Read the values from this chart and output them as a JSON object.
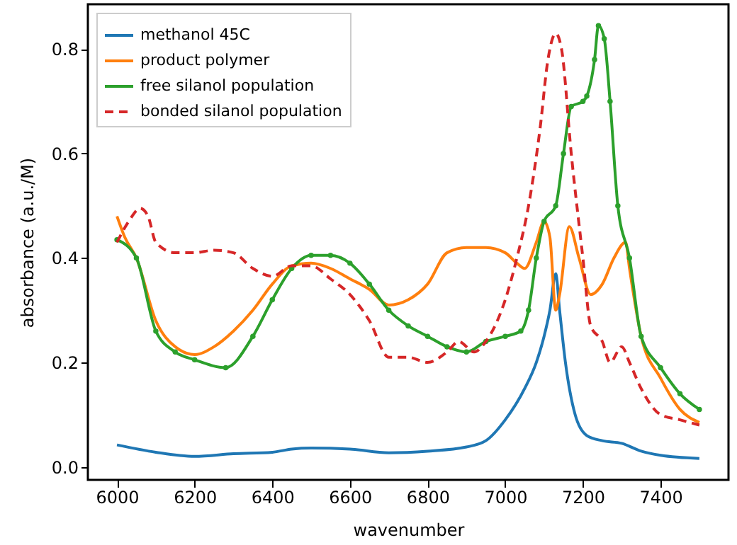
{
  "chart_data": {
    "type": "line",
    "xlabel": "wavenumber",
    "ylabel": "absorbance (a.u./M)",
    "legend": "top left",
    "grid": false,
    "line_style": "solid",
    "xlim": [
      5925,
      7575
    ],
    "xticks": [
      6000,
      6200,
      6400,
      6600,
      6800,
      7000,
      7200,
      7400
    ],
    "ylim": [
      -0.025,
      0.886
    ],
    "yticks": [
      {
        "value": 0,
        "label": "0.0"
      },
      {
        "value": 0.2,
        "label": "0.2"
      },
      {
        "value": 0.4,
        "label": "0.4"
      },
      {
        "value": 0.6,
        "label": "0.6"
      },
      {
        "value": 0.8,
        "label": "0.8"
      }
    ],
    "series": [
      {
        "name": "methanol 45C",
        "color": "#1f77b4",
        "x": [
          6000,
          6100,
          6200,
          6300,
          6400,
          6450,
          6500,
          6600,
          6700,
          6800,
          6900,
          6950,
          7000,
          7050,
          7080,
          7100,
          7115,
          7130,
          7140,
          7155,
          7180,
          7210,
          7250,
          7300,
          7350,
          7400,
          7500
        ],
        "values": [
          0.042,
          0.028,
          0.02,
          0.025,
          0.028,
          0.034,
          0.036,
          0.034,
          0.027,
          0.03,
          0.038,
          0.05,
          0.09,
          0.15,
          0.2,
          0.25,
          0.3,
          0.37,
          0.3,
          0.2,
          0.1,
          0.06,
          0.05,
          0.045,
          0.03,
          0.022,
          0.016
        ]
      },
      {
        "name": "product polymer",
        "color": "#ff7f0e",
        "x": [
          6000,
          6020,
          6050,
          6100,
          6150,
          6200,
          6250,
          6300,
          6350,
          6400,
          6450,
          6500,
          6550,
          6600,
          6650,
          6700,
          6750,
          6800,
          6850,
          6900,
          6950,
          7000,
          7030,
          7050,
          7080,
          7100,
          7115,
          7130,
          7140,
          7165,
          7190,
          7220,
          7250,
          7280,
          7310,
          7320,
          7350,
          7400,
          7450,
          7500
        ],
        "values": [
          0.48,
          0.44,
          0.4,
          0.28,
          0.23,
          0.215,
          0.23,
          0.26,
          0.3,
          0.35,
          0.385,
          0.39,
          0.38,
          0.36,
          0.34,
          0.31,
          0.32,
          0.35,
          0.41,
          0.42,
          0.42,
          0.41,
          0.39,
          0.38,
          0.43,
          0.47,
          0.44,
          0.3,
          0.33,
          0.46,
          0.4,
          0.33,
          0.35,
          0.4,
          0.43,
          0.38,
          0.25,
          0.17,
          0.11,
          0.085
        ]
      },
      {
        "name": "free silanol population",
        "color": "#2ca02c",
        "marker": "circle",
        "x": [
          6000,
          6050,
          6100,
          6150,
          6200,
          6280,
          6350,
          6400,
          6450,
          6500,
          6550,
          6600,
          6650,
          6700,
          6750,
          6800,
          6850,
          6900,
          6950,
          7000,
          7040,
          7060,
          7080,
          7100,
          7130,
          7150,
          7170,
          7200,
          7210,
          7230,
          7240,
          7255,
          7270,
          7290,
          7320,
          7350,
          7400,
          7450,
          7500
        ],
        "values": [
          0.435,
          0.4,
          0.26,
          0.22,
          0.205,
          0.19,
          0.25,
          0.32,
          0.38,
          0.405,
          0.405,
          0.39,
          0.35,
          0.3,
          0.27,
          0.25,
          0.23,
          0.22,
          0.24,
          0.25,
          0.26,
          0.3,
          0.4,
          0.47,
          0.5,
          0.6,
          0.69,
          0.7,
          0.71,
          0.78,
          0.845,
          0.82,
          0.7,
          0.5,
          0.4,
          0.25,
          0.19,
          0.14,
          0.11
        ]
      },
      {
        "name": "bonded silanol population",
        "color": "#d62728",
        "line_style": "dashed",
        "x": [
          6000,
          6030,
          6060,
          6080,
          6100,
          6150,
          6200,
          6250,
          6300,
          6350,
          6400,
          6450,
          6500,
          6550,
          6600,
          6650,
          6700,
          6750,
          6800,
          6850,
          6880,
          6920,
          6950,
          7000,
          7030,
          7060,
          7090,
          7110,
          7130,
          7145,
          7170,
          7200,
          7220,
          7250,
          7270,
          7300,
          7320,
          7350,
          7400,
          7450,
          7500
        ],
        "values": [
          0.43,
          0.47,
          0.495,
          0.48,
          0.43,
          0.41,
          0.41,
          0.415,
          0.41,
          0.38,
          0.365,
          0.385,
          0.385,
          0.36,
          0.33,
          0.28,
          0.21,
          0.21,
          0.2,
          0.22,
          0.24,
          0.22,
          0.24,
          0.32,
          0.4,
          0.5,
          0.65,
          0.78,
          0.83,
          0.8,
          0.6,
          0.4,
          0.27,
          0.24,
          0.2,
          0.23,
          0.2,
          0.15,
          0.1,
          0.09,
          0.08
        ]
      }
    ]
  }
}
